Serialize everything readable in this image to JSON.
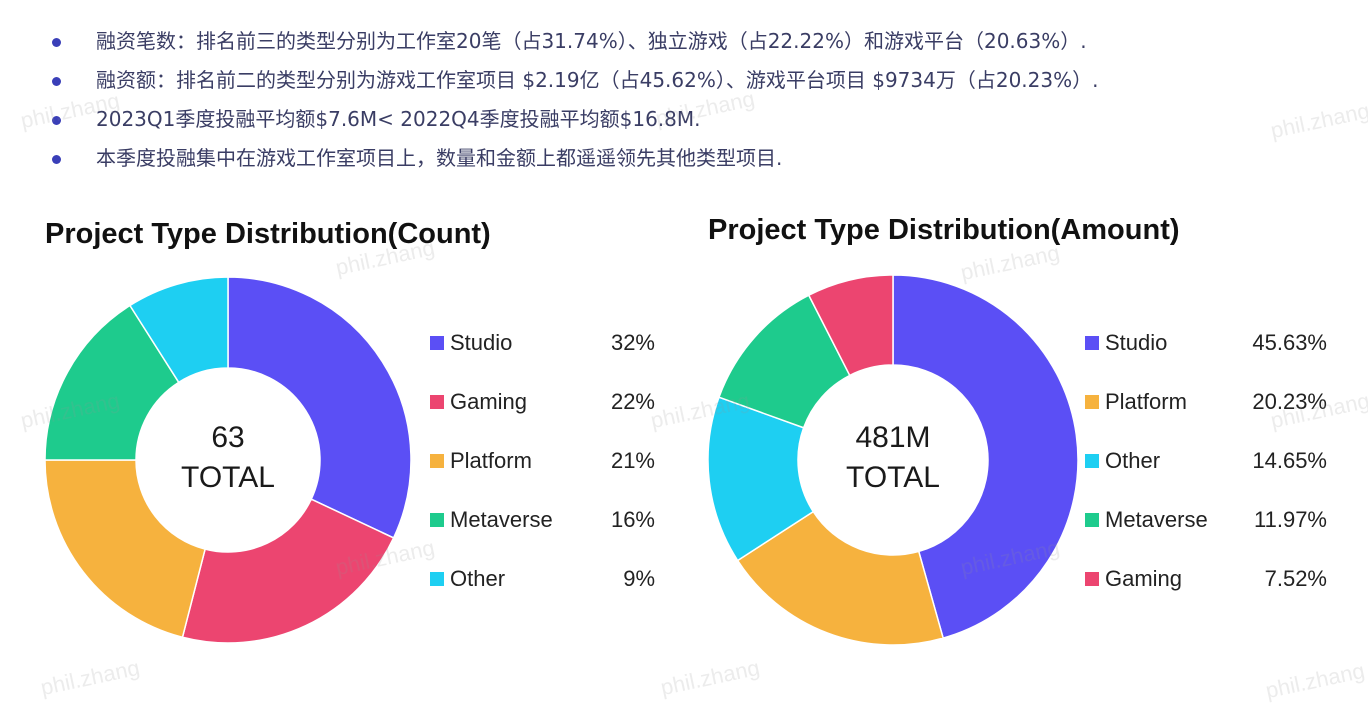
{
  "bullets": [
    "融资笔数：排名前三的类型分别为工作室20笔（占31.74%）、独立游戏（占22.22%）和游戏平台（20.63%）.",
    "融资额：排名前二的类型分别为游戏工作室项目 $2.19亿（占45.62%）、游戏平台项目 $9734万（占20.23%）.",
    "2023Q1季度投融平均额$7.6M< 2022Q4季度投融平均额$16.8M.",
    "本季度投融集中在游戏工作室项目上，数量和金额上都遥遥领先其他类型项目."
  ],
  "watermark": "phil.zhang",
  "colors": {
    "Studio": "#5b4ff5",
    "Gaming": "#ec4570",
    "Platform": "#f6b23e",
    "Metaverse": "#1ecb8d",
    "Other": "#1ecff2"
  },
  "chart_data": [
    {
      "type": "pie",
      "donut": true,
      "title": "Project Type Distribution(Count)",
      "center_value": "63",
      "center_label": "TOTAL",
      "categories": [
        "Studio",
        "Gaming",
        "Platform",
        "Metaverse",
        "Other"
      ],
      "values": [
        32,
        22,
        21,
        16,
        9
      ],
      "value_labels": [
        "32%",
        "22%",
        "21%",
        "16%",
        "9%"
      ],
      "legend": "right"
    },
    {
      "type": "pie",
      "donut": true,
      "title": "Project Type Distribution(Amount)",
      "center_value": "481M",
      "center_label": "TOTAL",
      "categories": [
        "Studio",
        "Platform",
        "Other",
        "Metaverse",
        "Gaming"
      ],
      "values": [
        45.63,
        20.23,
        14.65,
        11.97,
        7.52
      ],
      "value_labels": [
        "45.63%",
        "20.23%",
        "14.65%",
        "11.97%",
        "7.52%"
      ],
      "legend": "right"
    }
  ]
}
